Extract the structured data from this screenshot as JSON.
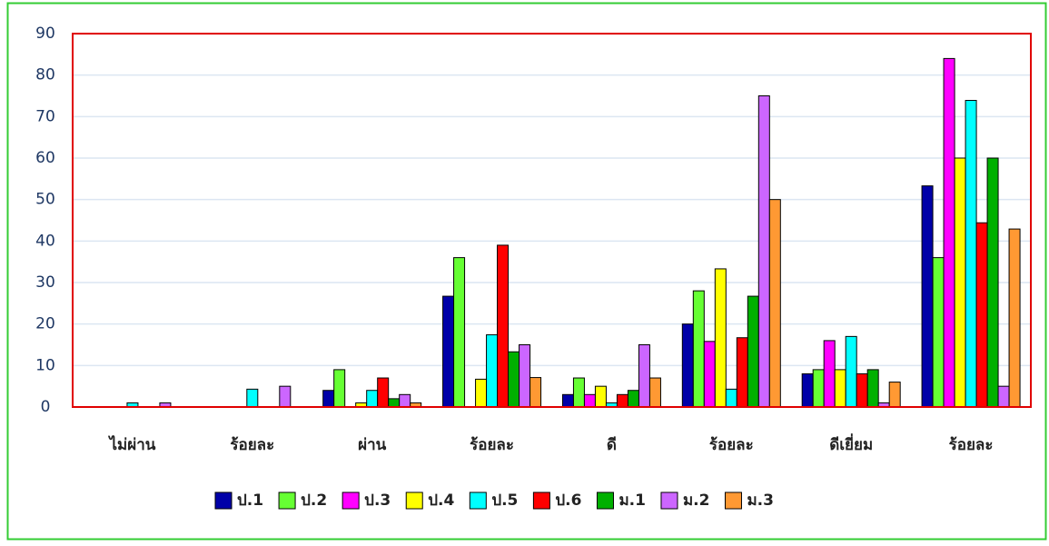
{
  "chart_data": {
    "type": "bar",
    "categories": [
      "ไม่ผ่าน",
      "ร้อยละ",
      "ผ่าน",
      "ร้อยละ",
      "ดี",
      "ร้อยละ",
      "ดีเยี่ยม",
      "ร้อยละ"
    ],
    "series": [
      {
        "name": "ป.1",
        "color": "#0000a8",
        "values": [
          0,
          0,
          4,
          26.7,
          3,
          20,
          8,
          53.3
        ]
      },
      {
        "name": "ป.2",
        "color": "#66ff33",
        "values": [
          0,
          0,
          9,
          36,
          7,
          28,
          9,
          36
        ]
      },
      {
        "name": "ป.3",
        "color": "#ff00ff",
        "values": [
          0,
          0,
          0,
          0,
          3,
          15.8,
          16,
          84
        ]
      },
      {
        "name": "ป.4",
        "color": "#ffff00",
        "values": [
          0,
          0,
          1,
          6.7,
          5,
          33.3,
          9,
          60
        ]
      },
      {
        "name": "ป.5",
        "color": "#00ffff",
        "values": [
          1,
          4.3,
          4,
          17.4,
          1,
          4.3,
          17,
          73.9
        ]
      },
      {
        "name": "ป.6",
        "color": "#ff0000",
        "values": [
          0,
          0,
          7,
          39,
          3,
          16.7,
          8,
          44.4
        ]
      },
      {
        "name": "ม.1",
        "color": "#00b000",
        "values": [
          0,
          0,
          2,
          13.3,
          4,
          26.7,
          9,
          60
        ]
      },
      {
        "name": "ม.2",
        "color": "#cc66ff",
        "values": [
          1,
          5,
          3,
          15,
          15,
          75,
          1,
          5
        ]
      },
      {
        "name": "ม.3",
        "color": "#ff9933",
        "values": [
          0,
          0,
          1,
          7.1,
          7,
          50,
          6,
          42.9
        ]
      }
    ],
    "ylim": [
      0,
      90
    ],
    "yticks": [
      0,
      10,
      20,
      30,
      40,
      50,
      60,
      70,
      80,
      90
    ],
    "grid": true,
    "legend": "bottom"
  }
}
